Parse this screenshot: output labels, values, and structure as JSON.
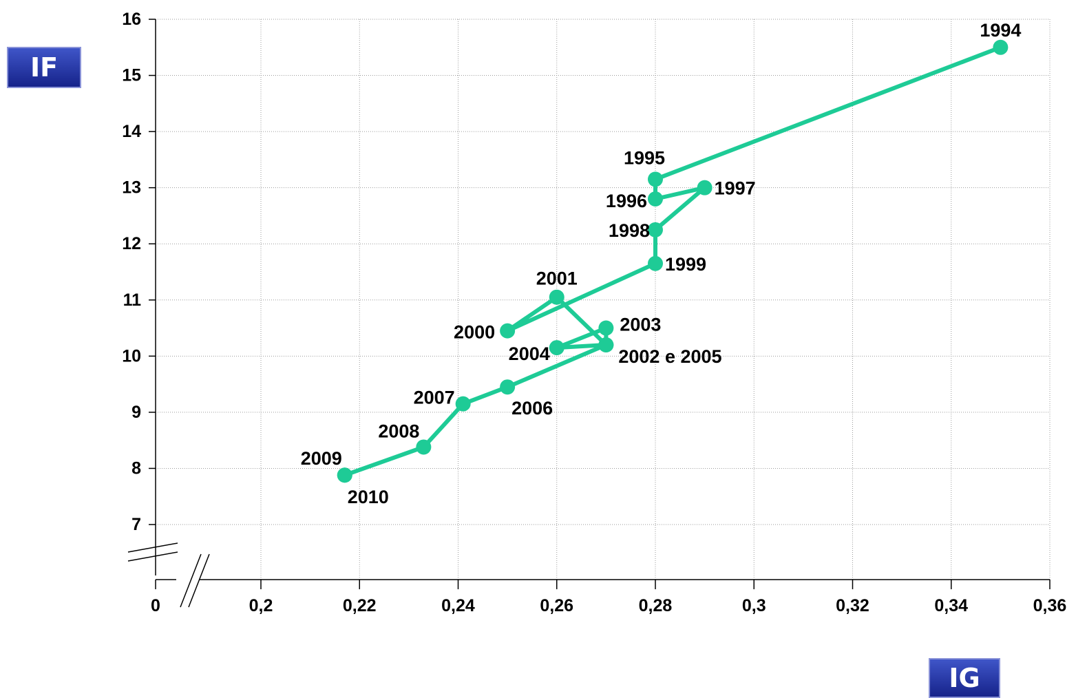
{
  "y_badge": "IF",
  "x_badge": "IG",
  "chart_data": {
    "type": "line",
    "xlim": [
      0.16,
      0.36
    ],
    "ylim": [
      6,
      16
    ],
    "x_ticks": [
      "0",
      "0,2",
      "0,22",
      "0,24",
      "0,26",
      "0,28",
      "0,3",
      "0,32",
      "0,34",
      "0,36"
    ],
    "y_ticks": [
      "7",
      "8",
      "9",
      "10",
      "11",
      "12",
      "13",
      "14",
      "15",
      "16"
    ],
    "grid": true,
    "axis_break": true,
    "line_color": "#1ecb96",
    "series": [
      {
        "points": [
          {
            "label": "1994",
            "x": 0.35,
            "y": 15.5
          },
          {
            "label": "1995",
            "x": 0.28,
            "y": 13.15
          },
          {
            "label": "1996",
            "x": 0.28,
            "y": 12.8
          },
          {
            "label": "1997",
            "x": 0.29,
            "y": 13.0
          },
          {
            "label": "1998",
            "x": 0.28,
            "y": 12.25
          },
          {
            "label": "1999",
            "x": 0.28,
            "y": 11.65
          },
          {
            "label": "2000",
            "x": 0.25,
            "y": 10.45
          },
          {
            "label": "2001",
            "x": 0.26,
            "y": 11.05
          },
          {
            "label": "2002 e 2005",
            "x": 0.27,
            "y": 10.2
          },
          {
            "label": "2003",
            "x": 0.27,
            "y": 10.5
          },
          {
            "label": "2004",
            "x": 0.26,
            "y": 10.15
          },
          {
            "label": "",
            "x": 0.27,
            "y": 10.2
          },
          {
            "label": "2006",
            "x": 0.25,
            "y": 9.45
          },
          {
            "label": "2007",
            "x": 0.241,
            "y": 9.15
          },
          {
            "label": "2008",
            "x": 0.233,
            "y": 8.38
          },
          {
            "label": "2009",
            "x": 0.217,
            "y": 7.88
          },
          {
            "label": "2010",
            "x": 0.217,
            "y": 7.88
          }
        ]
      }
    ]
  }
}
